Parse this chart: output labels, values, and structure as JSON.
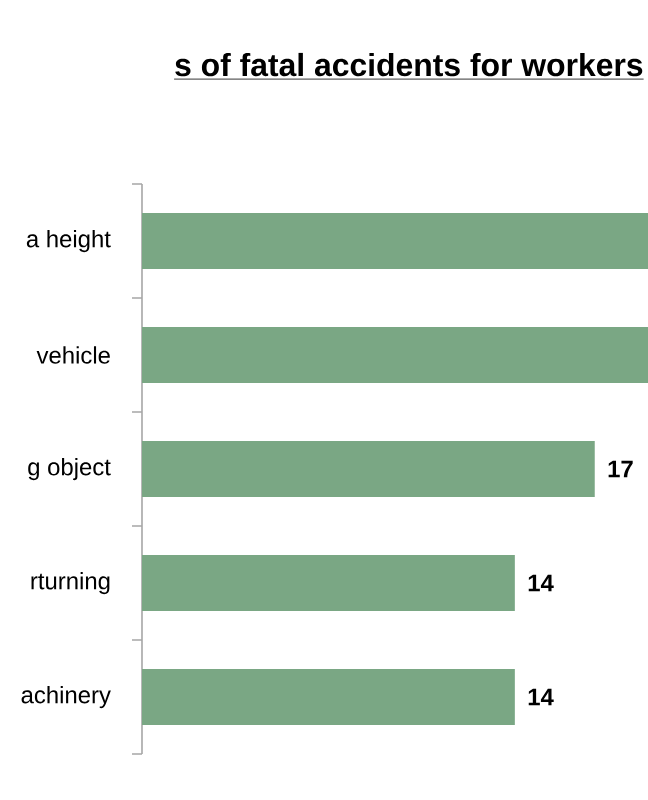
{
  "chart_data": {
    "type": "bar",
    "orientation": "horizontal",
    "title": "s of fatal accidents for workers",
    "categories": [
      "a height",
      "vehicle",
      "g object",
      "rturning",
      "achinery"
    ],
    "values": [
      19,
      19,
      17,
      14,
      14
    ],
    "value_labels": [
      null,
      null,
      "17",
      "14",
      "14"
    ],
    "color": "#7aa784",
    "xlim": [
      0,
      19
    ]
  }
}
